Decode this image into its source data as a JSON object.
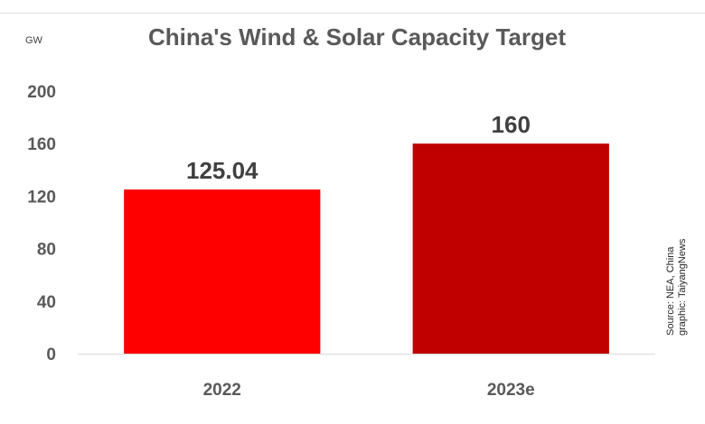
{
  "chart_data": {
    "type": "bar",
    "title": "China's Wind & Solar Capacity Target",
    "unit_label": "GW",
    "categories": [
      "2022",
      "2023e"
    ],
    "values": [
      125.04,
      160
    ],
    "data_labels": [
      "125.04",
      "160"
    ],
    "colors": [
      "#ff0000",
      "#c00000"
    ],
    "ylim": [
      0,
      200
    ],
    "yticks": [
      0,
      40,
      80,
      120,
      160,
      200
    ],
    "ytick_labels": [
      "0",
      "40",
      "80",
      "120",
      "160",
      "200"
    ],
    "grid": false,
    "legend": "none",
    "source_lines": [
      "Source: NEA, China",
      "graphic: TaiyangNews"
    ]
  }
}
